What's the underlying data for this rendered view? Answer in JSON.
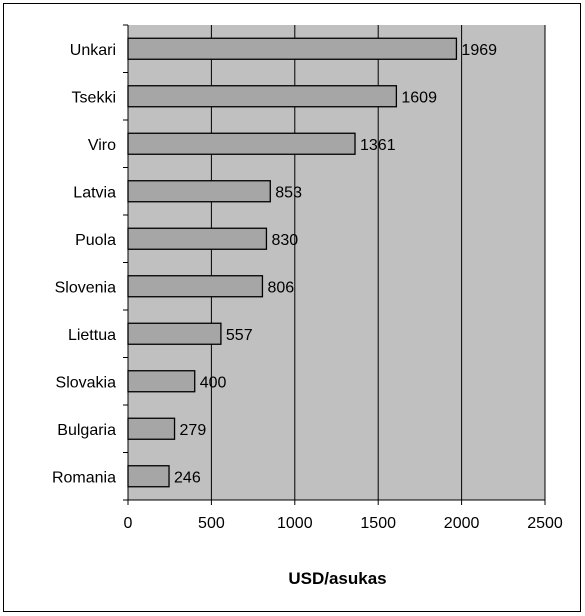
{
  "chart_data": {
    "type": "bar",
    "orientation": "horizontal",
    "categories": [
      "Unkari",
      "Tsekki",
      "Viro",
      "Latvia",
      "Puola",
      "Slovenia",
      "Liettua",
      "Slovakia",
      "Bulgaria",
      "Romania"
    ],
    "values": [
      1969,
      1609,
      1361,
      853,
      830,
      806,
      557,
      400,
      279,
      246
    ],
    "xlabel": "USD/asukas",
    "ylabel": "",
    "xlim": [
      0,
      2500
    ],
    "xticks": [
      "0",
      "500",
      "1000",
      "1500",
      "2000",
      "2500"
    ],
    "grid": "vertical",
    "data_labels": true,
    "colors": {
      "plot_background": "#c0c0c0",
      "bar_fill": "#a6a6a6",
      "bar_stroke": "#000000",
      "gridline": "#000000"
    }
  }
}
